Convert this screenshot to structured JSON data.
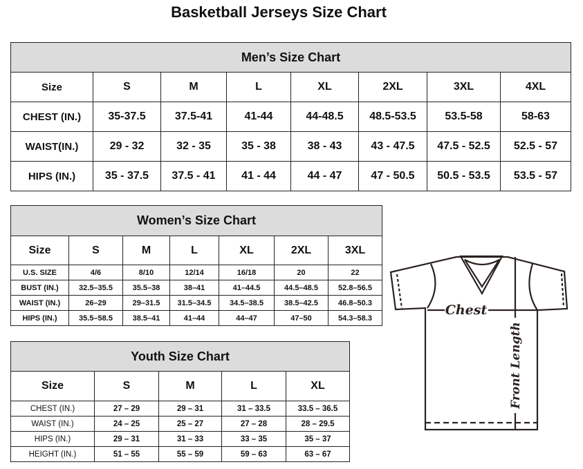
{
  "title": "Basketball Jerseys Size Chart",
  "men": {
    "caption": "Men’s Size Chart",
    "headers": [
      "Size",
      "S",
      "M",
      "L",
      "XL",
      "2XL",
      "3XL",
      "4XL"
    ],
    "rows": [
      [
        "CHEST (IN.)",
        "35-37.5",
        "37.5-41",
        "41-44",
        "44-48.5",
        "48.5-53.5",
        "53.5-58",
        "58-63"
      ],
      [
        "WAIST(IN.)",
        "29 - 32",
        "32 - 35",
        "35 - 38",
        "38 - 43",
        "43 - 47.5",
        "47.5 - 52.5",
        "52.5 - 57"
      ],
      [
        "HIPS (IN.)",
        "35 - 37.5",
        "37.5 - 41",
        "41 - 44",
        "44 - 47",
        "47 - 50.5",
        "50.5 - 53.5",
        "53.5 - 57"
      ]
    ]
  },
  "women": {
    "caption": "Women’s Size Chart",
    "headers": [
      "Size",
      "S",
      "M",
      "L",
      "XL",
      "2XL",
      "3XL"
    ],
    "rows": [
      [
        "U.S. SIZE",
        "4/6",
        "8/10",
        "12/14",
        "16/18",
        "20",
        "22"
      ],
      [
        "BUST (IN.)",
        "32.5–35.5",
        "35.5–38",
        "38–41",
        "41–44.5",
        "44.5–48.5",
        "52.8–56.5"
      ],
      [
        "WAIST (IN.)",
        "26–29",
        "29–31.5",
        "31.5–34.5",
        "34.5–38.5",
        "38.5–42.5",
        "46.8–50.3"
      ],
      [
        "HIPS (IN.)",
        "35.5–58.5",
        "38.5–41",
        "41–44",
        "44–47",
        "47–50",
        "54.3–58.3"
      ]
    ]
  },
  "youth": {
    "caption": "Youth Size Chart",
    "headers": [
      "Size",
      "S",
      "M",
      "L",
      "XL"
    ],
    "rows": [
      [
        "CHEST (IN.)",
        "27 – 29",
        "29 – 31",
        "31 – 33.5",
        "33.5 – 36.5"
      ],
      [
        "WAIST (IN.)",
        "24 – 25",
        "25 – 27",
        "27 – 28",
        "28 – 29.5"
      ],
      [
        "HIPS (IN.)",
        "29 – 31",
        "31 – 33",
        "33 – 35",
        "35 – 37"
      ],
      [
        "HEIGHT (IN.)",
        "51 – 55",
        "55 – 59",
        "59 – 63",
        "63 – 67"
      ]
    ]
  },
  "diagram": {
    "chest_label": "Chest",
    "length_label": "Front Length"
  }
}
